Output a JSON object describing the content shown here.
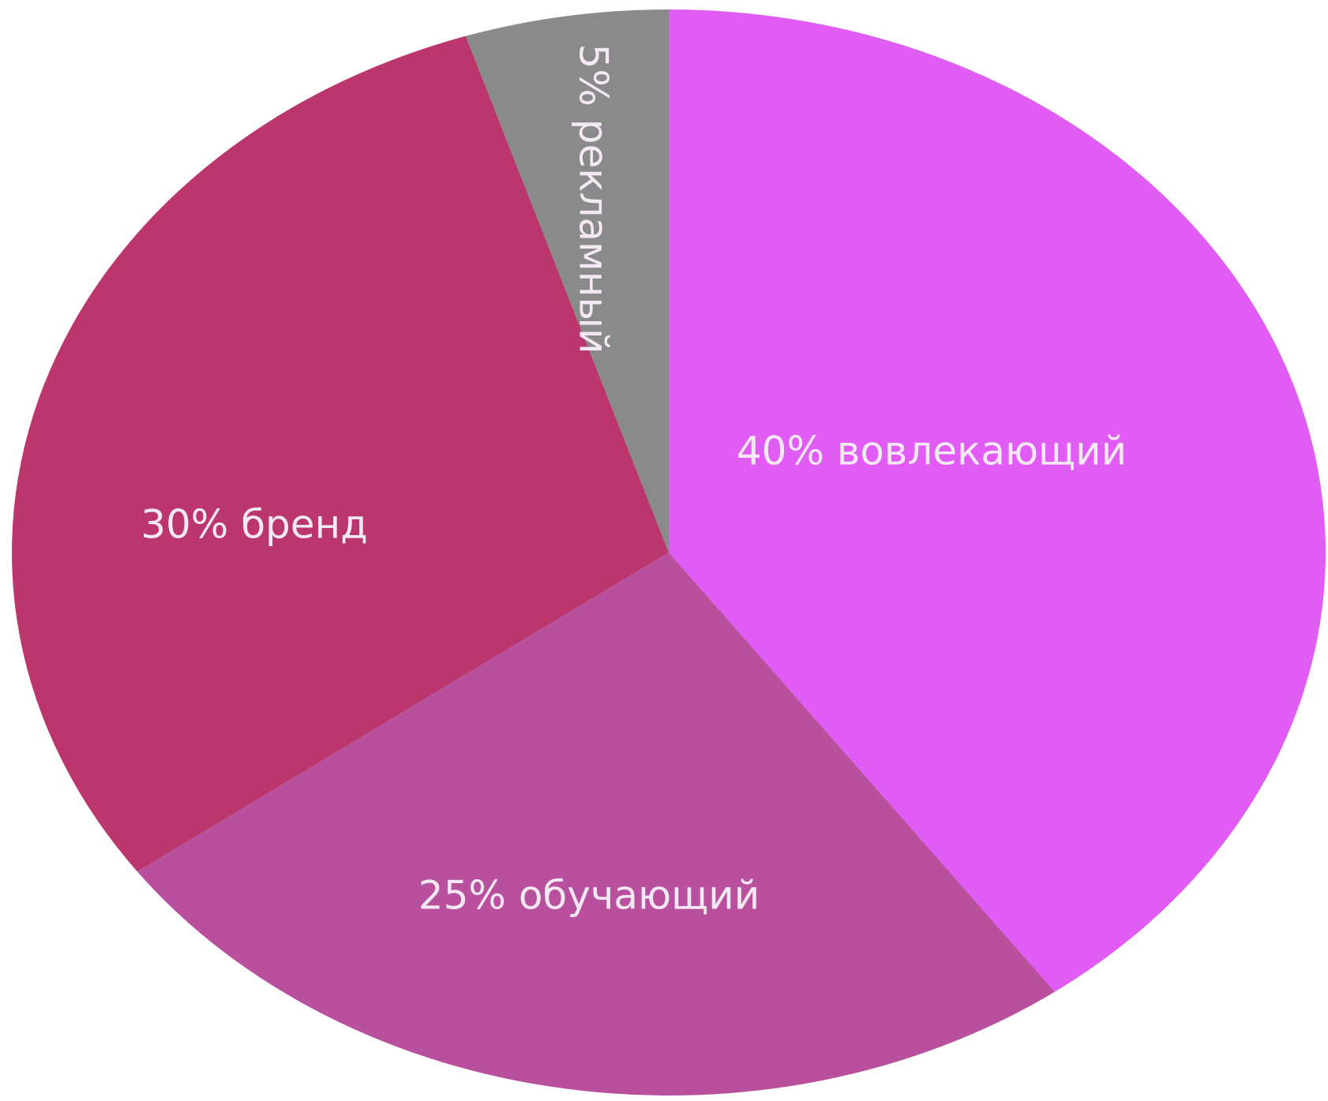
{
  "chart_data": {
    "type": "pie",
    "slices": [
      {
        "label": "40% вовлекающий",
        "category": "вовлекающий",
        "value": 40,
        "color": "#e05cf5"
      },
      {
        "label": "25% обучающий",
        "category": "обучающий",
        "value": 25,
        "color": "#b8509e"
      },
      {
        "label": "30% бренд",
        "category": "бренд",
        "value": 30,
        "color": "#bb366d"
      },
      {
        "label": "5% рекламный",
        "category": "рекламный",
        "value": 5,
        "color": "#8a8a8a"
      }
    ],
    "start": "12 o'clock, clockwise",
    "legend": "none",
    "data_labels": "inside slices"
  }
}
